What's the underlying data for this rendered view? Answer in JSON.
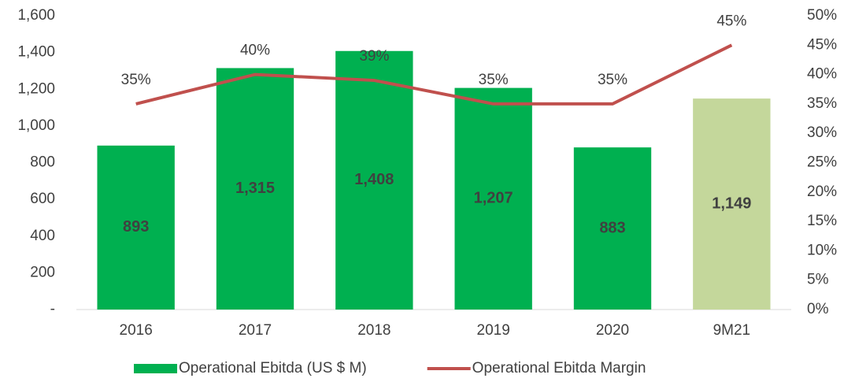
{
  "chart_data": {
    "type": "bar",
    "categories": [
      "2016",
      "2017",
      "2018",
      "2019",
      "2020",
      "9M21"
    ],
    "series": [
      {
        "name": "Operational Ebitda (US $ M)",
        "type": "bar",
        "color": "#00b050",
        "colors": [
          "#00b050",
          "#00b050",
          "#00b050",
          "#00b050",
          "#00b050",
          "#c4d79b"
        ],
        "values": [
          893,
          1315,
          1408,
          1207,
          883,
          1149
        ],
        "value_labels": [
          "893",
          "1,315",
          "1,408",
          "1,207",
          "883",
          "1,149"
        ]
      },
      {
        "name": "Operational Ebitda Margin",
        "type": "line",
        "axis": "y2",
        "color": "#c0504d",
        "values": [
          35,
          40,
          39,
          35,
          35,
          45
        ],
        "value_labels": [
          "35%",
          "40%",
          "39%",
          "35%",
          "35%",
          "45%"
        ]
      }
    ],
    "ylim": [
      0,
      1600
    ],
    "yticks": [
      {
        "value": 0,
        "label": "-"
      },
      200,
      400,
      600,
      800,
      {
        "value": 1000,
        "label": "1,000"
      },
      {
        "value": 1200,
        "label": "1,200"
      },
      {
        "value": 1400,
        "label": "1,400"
      },
      {
        "value": 1600,
        "label": "1,600"
      }
    ],
    "y2lim": [
      0,
      50
    ],
    "y2ticks": [
      {
        "value": 0,
        "label": "0%"
      },
      {
        "value": 5,
        "label": "5%"
      },
      {
        "value": 10,
        "label": "10%"
      },
      {
        "value": 15,
        "label": "15%"
      },
      {
        "value": 20,
        "label": "20%"
      },
      {
        "value": 25,
        "label": "25%"
      },
      {
        "value": 30,
        "label": "30%"
      },
      {
        "value": 35,
        "label": "35%"
      },
      {
        "value": 40,
        "label": "40%"
      },
      {
        "value": 45,
        "label": "45%"
      },
      {
        "value": 50,
        "label": "50%"
      }
    ],
    "grid": false,
    "legend": "bottom"
  }
}
